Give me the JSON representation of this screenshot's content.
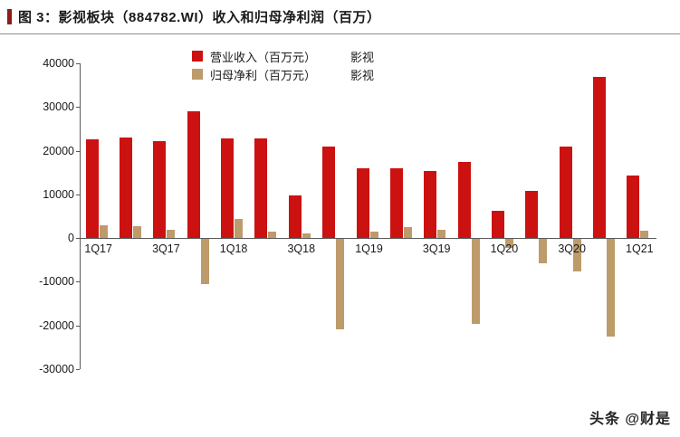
{
  "title": "图 3：影视板块（884782.WI）收入和归母净利润（百万）",
  "watermark": "头条 @财是",
  "colors": {
    "revenue": "#cc1111",
    "profit": "#bd9b6b",
    "title_accent": "#8b1d1d",
    "axis": "#595959"
  },
  "legend": [
    {
      "label": "营业收入（百万元）",
      "tag": "影视"
    },
    {
      "label": "归母净利（百万元）",
      "tag": "影视"
    }
  ],
  "chart_data": {
    "type": "bar",
    "categories": [
      "1Q17",
      "2Q17",
      "3Q17",
      "4Q17",
      "1Q18",
      "2Q18",
      "3Q18",
      "4Q18",
      "1Q19",
      "2Q19",
      "3Q19",
      "4Q19",
      "1Q20",
      "2Q20",
      "3Q20",
      "4Q20",
      "1Q21"
    ],
    "x_tick_labels": [
      "1Q17",
      "3Q17",
      "1Q18",
      "3Q18",
      "1Q19",
      "3Q19",
      "1Q20",
      "3Q20",
      "1Q21"
    ],
    "series": [
      {
        "name": "营业收入（百万元）影视",
        "values": [
          22500,
          23000,
          22200,
          29000,
          22800,
          22700,
          9800,
          21000,
          16000,
          16000,
          15400,
          17400,
          6300,
          10800,
          21000,
          36800,
          14400
        ]
      },
      {
        "name": "归母净利（百万元）影视",
        "values": [
          2800,
          2600,
          1800,
          -10300,
          4400,
          1500,
          1000,
          -20800,
          1400,
          2400,
          1800,
          -19500,
          -2000,
          -5500,
          -7500,
          -22300,
          1600
        ]
      }
    ],
    "ylim": [
      -30000,
      40000
    ],
    "ytick_step": 10000,
    "grid": false,
    "legend_position": "top-center"
  }
}
